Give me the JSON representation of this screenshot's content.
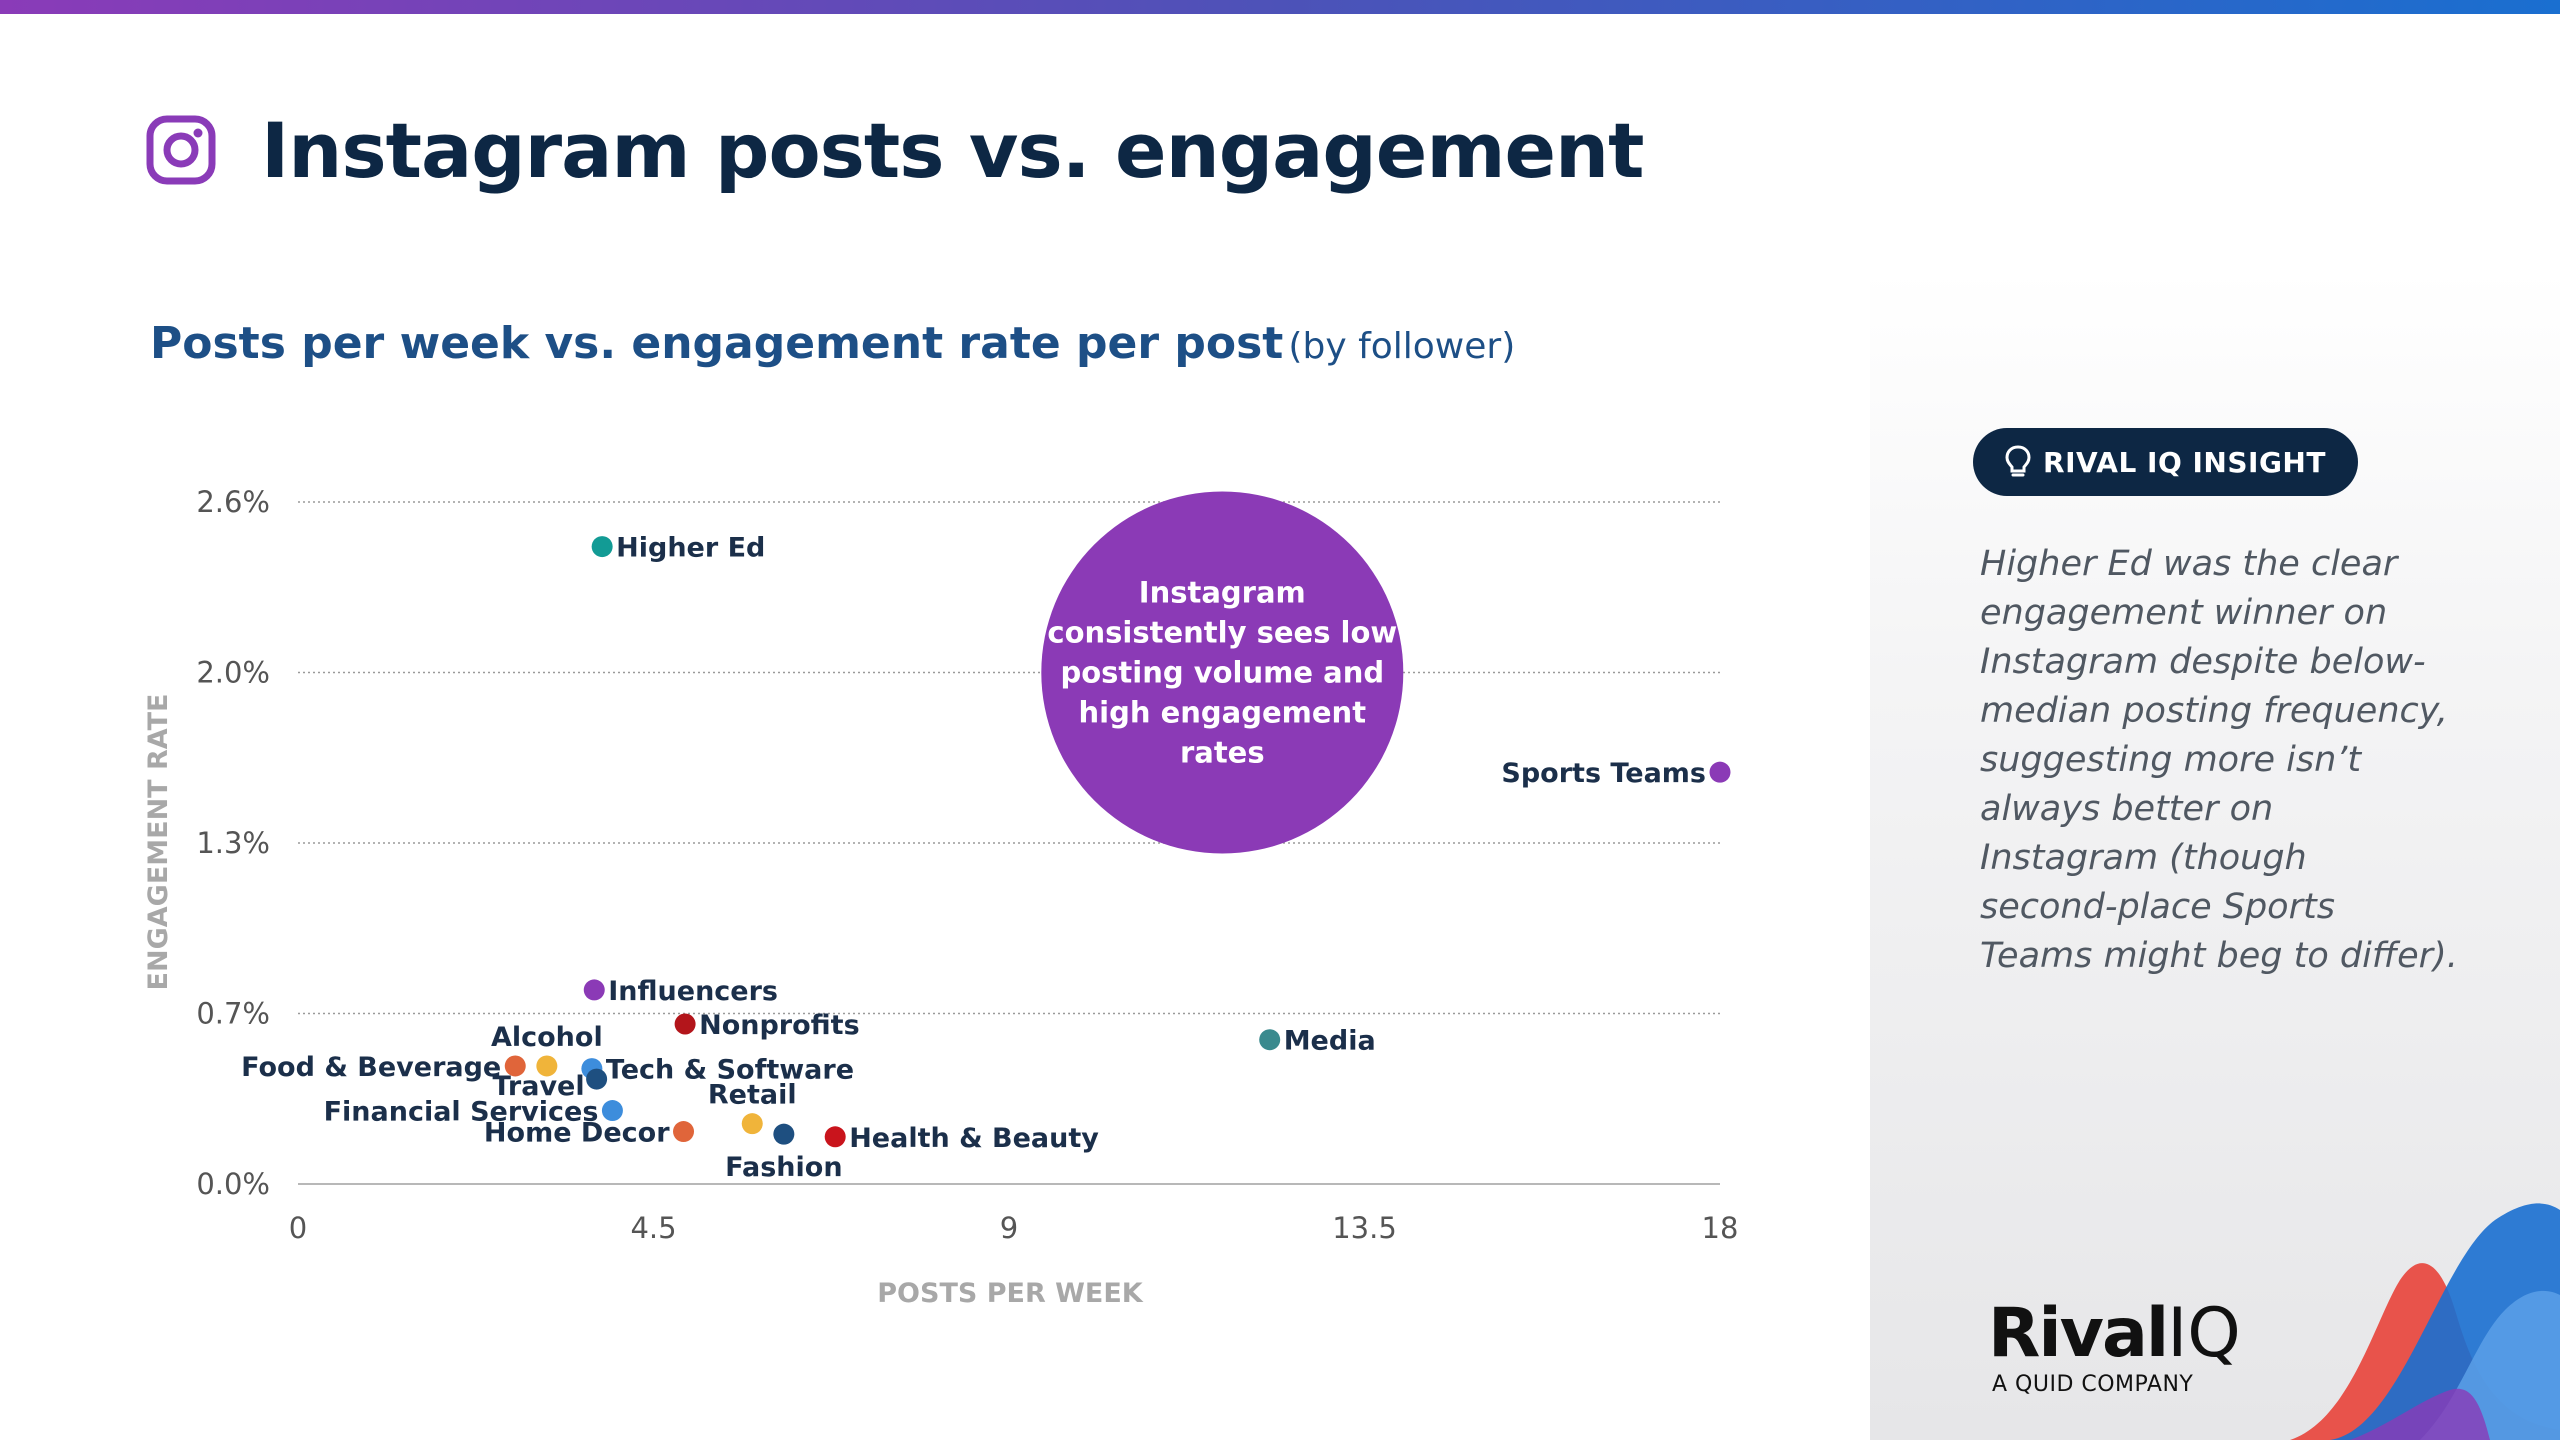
{
  "header": {
    "title": "Instagram posts vs. engagement",
    "icon": "instagram-icon",
    "icon_color": "#8a3bb8"
  },
  "chart_title": {
    "main": "Posts per week vs. engagement rate per post",
    "sub": "(by follower)"
  },
  "chart_data": {
    "type": "scatter",
    "title": "Posts per week vs. engagement rate per post",
    "subtitle": "(by follower)",
    "xlabel": "POSTS PER WEEK",
    "ylabel": "ENGAGEMENT RATE",
    "xlim": [
      0,
      18
    ],
    "ylim": [
      0,
      2.6
    ],
    "x_ticks": [
      {
        "value": 0,
        "label": "0"
      },
      {
        "value": 4.5,
        "label": "4.5"
      },
      {
        "value": 9,
        "label": "9"
      },
      {
        "value": 13.5,
        "label": "13.5"
      },
      {
        "value": 18,
        "label": "18"
      }
    ],
    "y_ticks": [
      {
        "value": 0,
        "label": "0.0%"
      },
      {
        "value": 0.65,
        "label": "0.7%"
      },
      {
        "value": 1.3,
        "label": "1.3%"
      },
      {
        "value": 1.95,
        "label": "2.0%"
      },
      {
        "value": 2.6,
        "label": "2.6%"
      }
    ],
    "grid": "horizontal-dotted",
    "points": [
      {
        "name": "Higher Ed",
        "x": 3.85,
        "y": 2.43,
        "color": "#129b95",
        "label_pos": "right"
      },
      {
        "name": "Sports Teams",
        "x": 18.0,
        "y": 1.57,
        "color": "#8b3ab6",
        "label_pos": "left"
      },
      {
        "name": "Influencers",
        "x": 3.75,
        "y": 0.74,
        "color": "#8b3ab6",
        "label_pos": "right"
      },
      {
        "name": "Nonprofits",
        "x": 4.9,
        "y": 0.61,
        "color": "#b3151b",
        "label_pos": "right"
      },
      {
        "name": "Media",
        "x": 12.3,
        "y": 0.55,
        "color": "#3a8a8e",
        "label_pos": "right"
      },
      {
        "name": "Alcohol",
        "x": 3.15,
        "y": 0.45,
        "color": "#f0b43a",
        "label_pos": "above"
      },
      {
        "name": "Food & Beverage",
        "x": 2.75,
        "y": 0.45,
        "color": "#e0653a",
        "label_pos": "left"
      },
      {
        "name": "Tech & Software",
        "x": 3.72,
        "y": 0.44,
        "color": "#3d8ddc",
        "label_pos": "right"
      },
      {
        "name": "Travel",
        "x": 3.78,
        "y": 0.4,
        "color": "#1e4f80",
        "label_pos": "left-below"
      },
      {
        "name": "Retail",
        "x": 5.75,
        "y": 0.23,
        "color": "#f0b43a",
        "label_pos": "above"
      },
      {
        "name": "Financial Services",
        "x": 3.98,
        "y": 0.28,
        "color": "#3d8ddc",
        "label_pos": "left"
      },
      {
        "name": "Home Decor",
        "x": 4.88,
        "y": 0.2,
        "color": "#e0653a",
        "label_pos": "left"
      },
      {
        "name": "Fashion",
        "x": 6.15,
        "y": 0.19,
        "color": "#1e4f80",
        "label_pos": "below"
      },
      {
        "name": "Health & Beauty",
        "x": 6.8,
        "y": 0.18,
        "color": "#c9141c",
        "label_pos": "right"
      }
    ],
    "annotation": {
      "text_lines": [
        "Instagram",
        "consistently sees low",
        "posting volume and",
        "high engagement",
        "rates"
      ],
      "x": 11.7,
      "y": 1.95,
      "color": "#8b3ab6"
    },
    "legend": "none"
  },
  "insight": {
    "badge": "RIVAL IQ INSIGHT",
    "badge_icon": "lightbulb-icon",
    "text_lines": [
      "Higher Ed was the clear",
      "engagement winner on",
      "Instagram despite below-",
      "median posting frequency,",
      "suggesting more isn’t",
      "always better on",
      "Instagram (though",
      "second-place Sports",
      "Teams might beg to differ)."
    ]
  },
  "logo": {
    "rival": "Rival",
    "iq": "IQ",
    "sub": "A QUID COMPANY"
  }
}
